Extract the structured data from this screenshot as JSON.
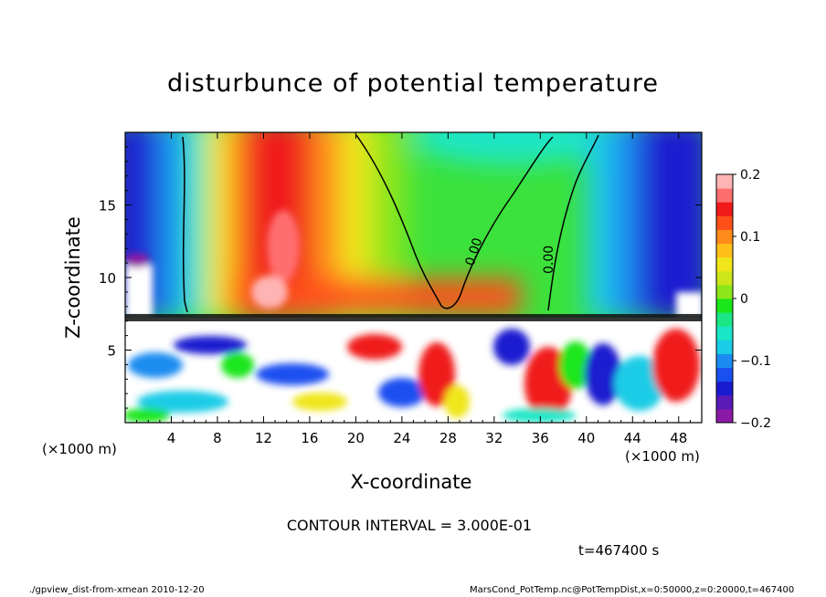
{
  "chart_data": {
    "type": "heatmap",
    "title": "disturbunce of potential temperature",
    "xlabel": "X-coordinate",
    "ylabel": "Z-coordinate",
    "x_unit": "(×1000 m)",
    "xlim": [
      0,
      50
    ],
    "ylim": [
      0,
      20
    ],
    "x_ticks": [
      4,
      8,
      12,
      16,
      20,
      24,
      28,
      32,
      36,
      40,
      44,
      48
    ],
    "y_ticks": [
      5,
      10,
      15
    ],
    "colorbar": {
      "range": [
        -0.2,
        0.2
      ],
      "ticks": [
        0.2,
        0.1,
        0,
        -0.1,
        -0.2
      ],
      "tick_labels": [
        "0.2",
        "0.1",
        "0",
        "−0.1",
        "−0.2"
      ],
      "colors": [
        "#8a1aa6",
        "#5a1ab8",
        "#1a1ad0",
        "#1a50f0",
        "#1a8cf0",
        "#1acce6",
        "#1ae6c8",
        "#1ae686",
        "#1ae61a",
        "#8ce61a",
        "#cce61a",
        "#f0e61a",
        "#ffc01a",
        "#ff8c1a",
        "#ff501a",
        "#f01a1a",
        "#ff6e6e",
        "#ffb4b4"
      ]
    },
    "contour_labels": [
      "0.00",
      "0.00"
    ],
    "grid": false,
    "legend": "colorbar right"
  },
  "annotations": {
    "contour_interval": "CONTOUR INTERVAL = 3.000E-01",
    "time": "t=467400 s"
  },
  "footer": {
    "left": "./gpview_dist-from-xmean 2010-12-20",
    "right": "MarsCond_PotTemp.nc@PotTempDist,x=0:50000,z=0:20000,t=467400"
  }
}
